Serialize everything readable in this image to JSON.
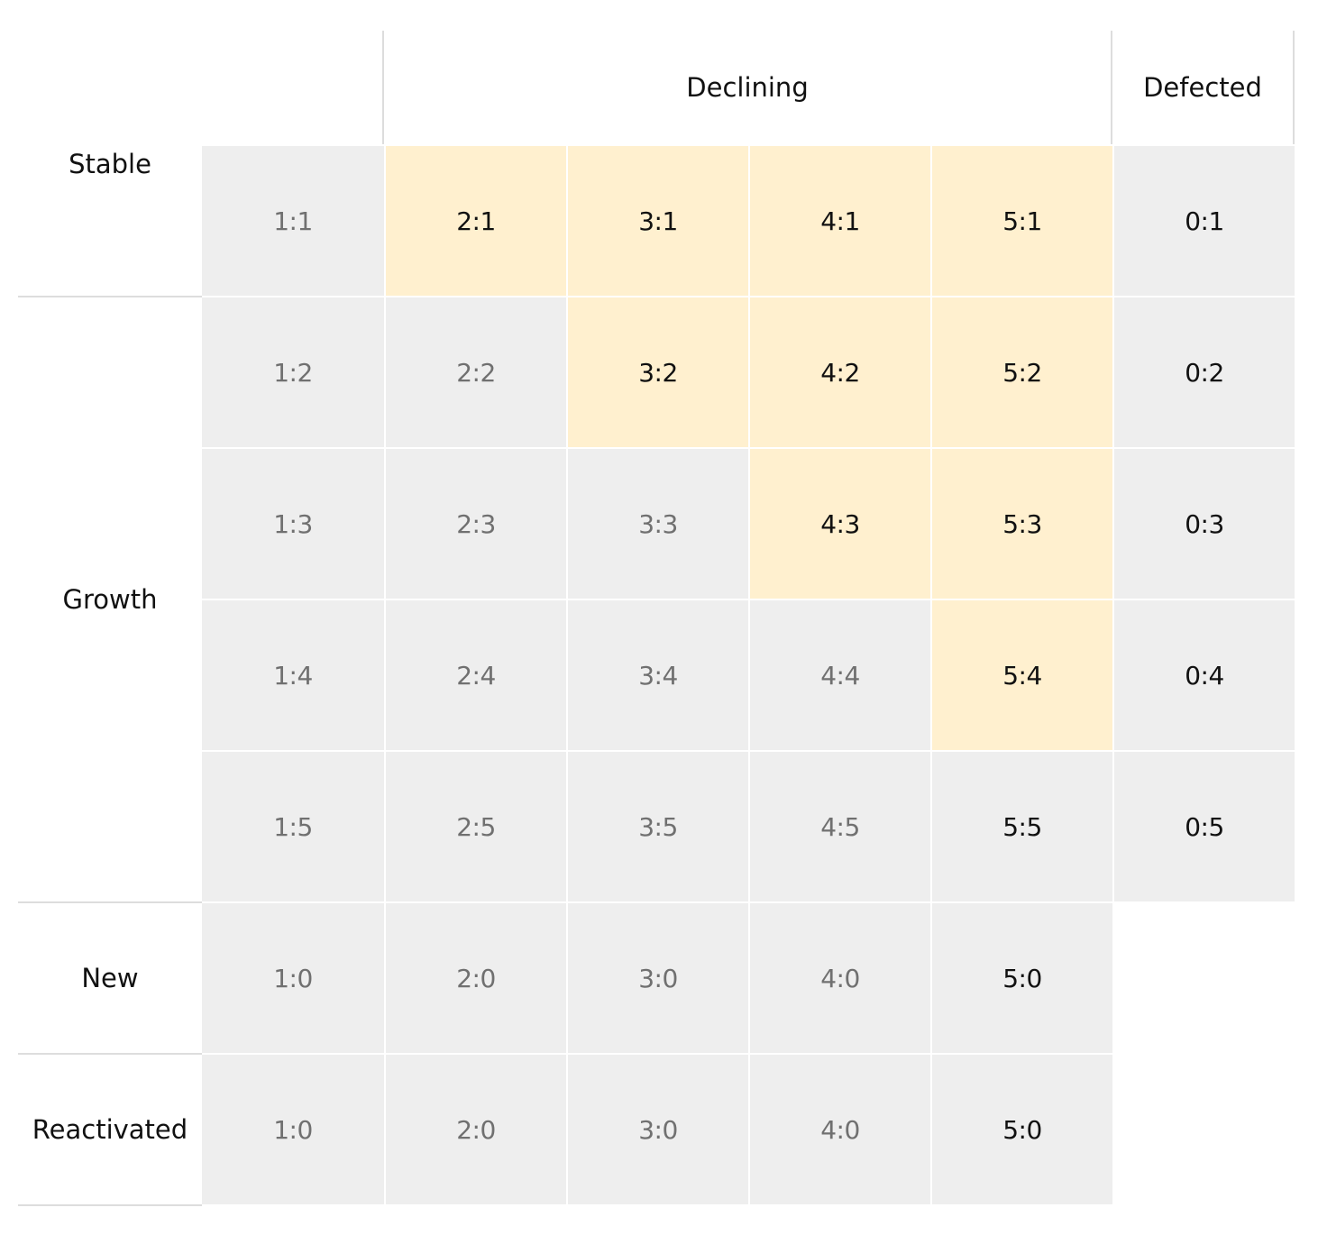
{
  "column_headers": {
    "declining": "Declining",
    "defected": "Defected"
  },
  "row_headers": {
    "stable": "Stable",
    "growth": "Growth",
    "new": "New",
    "reactivated": "Reactivated"
  },
  "rows": [
    {
      "cells": [
        "1:1",
        "2:1",
        "3:1",
        "4:1",
        "5:1",
        "0:1"
      ]
    },
    {
      "cells": [
        "1:2",
        "2:2",
        "3:2",
        "4:2",
        "5:2",
        "0:2"
      ]
    },
    {
      "cells": [
        "1:3",
        "2:3",
        "3:3",
        "4:3",
        "5:3",
        "0:3"
      ]
    },
    {
      "cells": [
        "1:4",
        "2:4",
        "3:4",
        "4:4",
        "5:4",
        "0:4"
      ]
    },
    {
      "cells": [
        "1:5",
        "2:5",
        "3:5",
        "4:5",
        "5:5",
        "0:5"
      ]
    },
    {
      "cells": [
        "1:0",
        "2:0",
        "3:0",
        "4:0",
        "5:0"
      ]
    },
    {
      "cells": [
        "1:0",
        "2:0",
        "3:0",
        "4:0",
        "5:0"
      ]
    }
  ],
  "highlighted_cells": [
    "2:1",
    "3:1",
    "4:1",
    "5:1",
    "3:2",
    "4:2",
    "5:2",
    "4:3",
    "5:3",
    "5:4"
  ],
  "colors": {
    "highlight": "#fff0cf",
    "cell": "#eeeeee",
    "muted_text": "#707070",
    "dark_text": "#111111",
    "border": "#dddddd"
  }
}
